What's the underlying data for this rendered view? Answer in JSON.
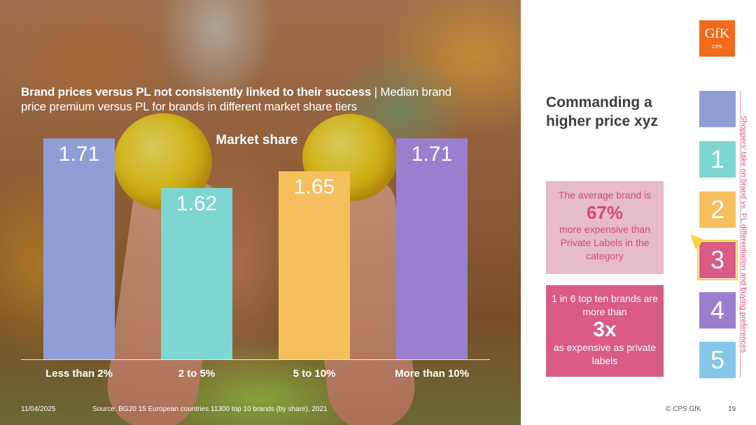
{
  "slide": {
    "title_bold": "Brand prices versus PL not consistently linked to their success",
    "title_rest": " | Median brand price premium versus PL for brands in different market share tiers",
    "date": "11/04/2025",
    "source": "Source: BG20 15 European countries 11300 top 10 brands (by share), 2021",
    "copyright": "© CPS GfK",
    "page_number": "19"
  },
  "logo": {
    "main": "GfK",
    "sub": "CPS"
  },
  "chart_data": {
    "type": "bar",
    "title": "Brand prices versus PL not consistently linked to their success | Median brand price premium versus PL for brands in different market share tiers",
    "series_label": "Market share",
    "categories": [
      "Less than 2%",
      "2 to 5%",
      "5 to 10%",
      "More than 10%"
    ],
    "values": [
      1.71,
      1.62,
      1.65,
      1.71
    ],
    "value_labels": [
      "1.71",
      "1.62",
      "1.65",
      "1.71"
    ],
    "colors": [
      "#8f9fd6",
      "#7ed6d2",
      "#f5bf5e",
      "#9a7fcf"
    ],
    "ylim": [
      1.55,
      1.71
    ],
    "grid": false,
    "legend": "none"
  },
  "sidebar": {
    "headline": "Commanding a higher price xyz",
    "card_1": {
      "line1": "The average brand is",
      "big": "67%",
      "line2": "more expensive than Private Labels in the category"
    },
    "card_2": {
      "line1": "1 in 6 top ten brands are more than",
      "big": "3x",
      "line2": "as expensive as private labels"
    },
    "tiles": [
      "",
      "1",
      "2",
      "3",
      "4",
      "5"
    ],
    "active_tile": "3",
    "vertical_text": "Shoppers' take on brand vs. PL differentiation and buying preferences"
  }
}
